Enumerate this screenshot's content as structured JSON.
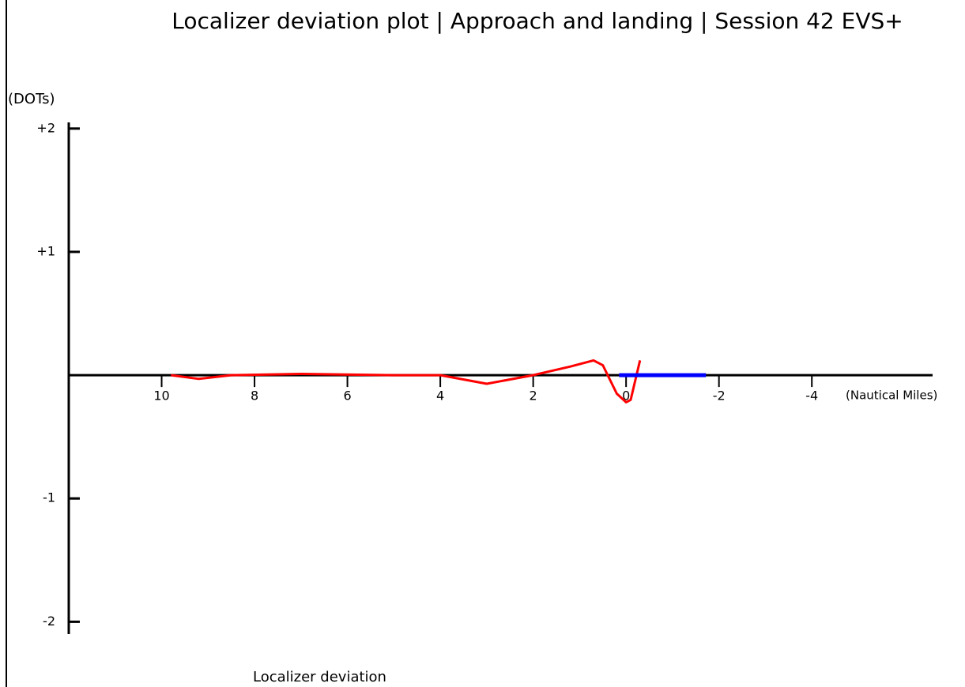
{
  "chart_data": {
    "type": "line",
    "title": "Localizer deviation plot | Approach and landing | Session 42 EVS+",
    "y_label": "(DOTs)",
    "x_label": "(Nautical Miles)",
    "caption": "Localizer deviation",
    "series": [
      {
        "color": "#ff0000",
        "x": [
          9.8,
          9.2,
          8.5,
          7,
          5,
          4,
          3,
          2,
          1.2,
          0.7,
          0.5,
          0.2,
          0,
          -0.1,
          -0.3
        ],
        "values": [
          0,
          -0.03,
          0,
          0.01,
          0,
          0,
          -0.07,
          0,
          0.07,
          0.12,
          0.08,
          -0.15,
          -0.22,
          -0.2,
          0.12
        ]
      },
      {
        "color": "#0000ff",
        "x": [
          0.15,
          -1.72
        ],
        "values": [
          0,
          0
        ]
      }
    ],
    "xlim": [
      12,
      -6.6
    ],
    "ylim": [
      -2.1,
      2.05
    ],
    "xticks": [
      10,
      8,
      6,
      4,
      2,
      0,
      -2,
      -4
    ],
    "yticks": [
      {
        "value": 2,
        "label": "+2"
      },
      {
        "value": 1,
        "label": "+1"
      },
      {
        "value": -1,
        "label": "-1"
      },
      {
        "value": -2,
        "label": "-2"
      }
    ]
  }
}
